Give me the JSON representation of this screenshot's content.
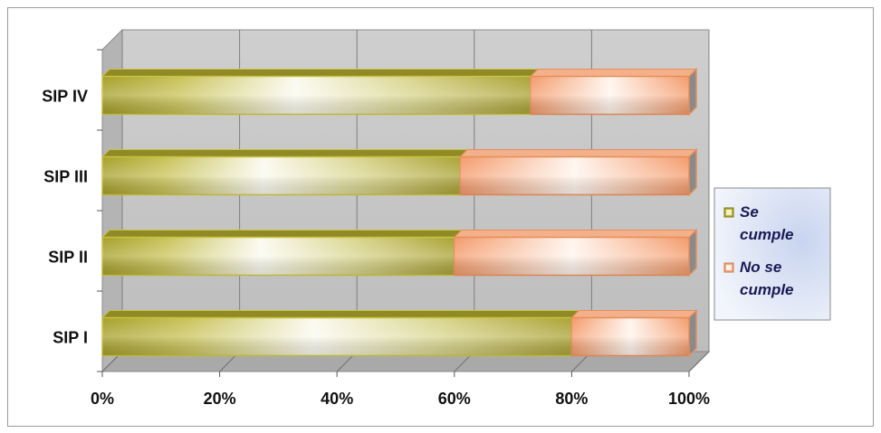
{
  "chart_data": {
    "type": "bar",
    "orientation": "horizontal",
    "stacked": "percent",
    "three_d": true,
    "categories": [
      "SIP I",
      "SIP II",
      "SIP III",
      "SIP IV"
    ],
    "series": [
      {
        "name": "Se cumple",
        "values": [
          80,
          60,
          61,
          73
        ]
      },
      {
        "name": "No se cumple",
        "values": [
          20,
          40,
          39,
          27
        ]
      }
    ],
    "x_ticks": [
      "0%",
      "20%",
      "40%",
      "60%",
      "80%",
      "100%"
    ],
    "xlim": [
      0,
      100
    ],
    "grid": true,
    "legend_position": "right",
    "colors": {
      "se_cumple": "#b9b23a",
      "se_cumple_dark": "#8a8520",
      "no_se_cumple": "#f6a57a",
      "no_se_cumple_dark": "#e08a58",
      "wall": "#c8c8c8",
      "legend_bg": "#dfe6f4"
    }
  },
  "legend": {
    "se_cumple_lines": [
      "Se",
      "cumple"
    ],
    "no_se_cumple_lines": [
      "No se",
      "cumple"
    ]
  }
}
